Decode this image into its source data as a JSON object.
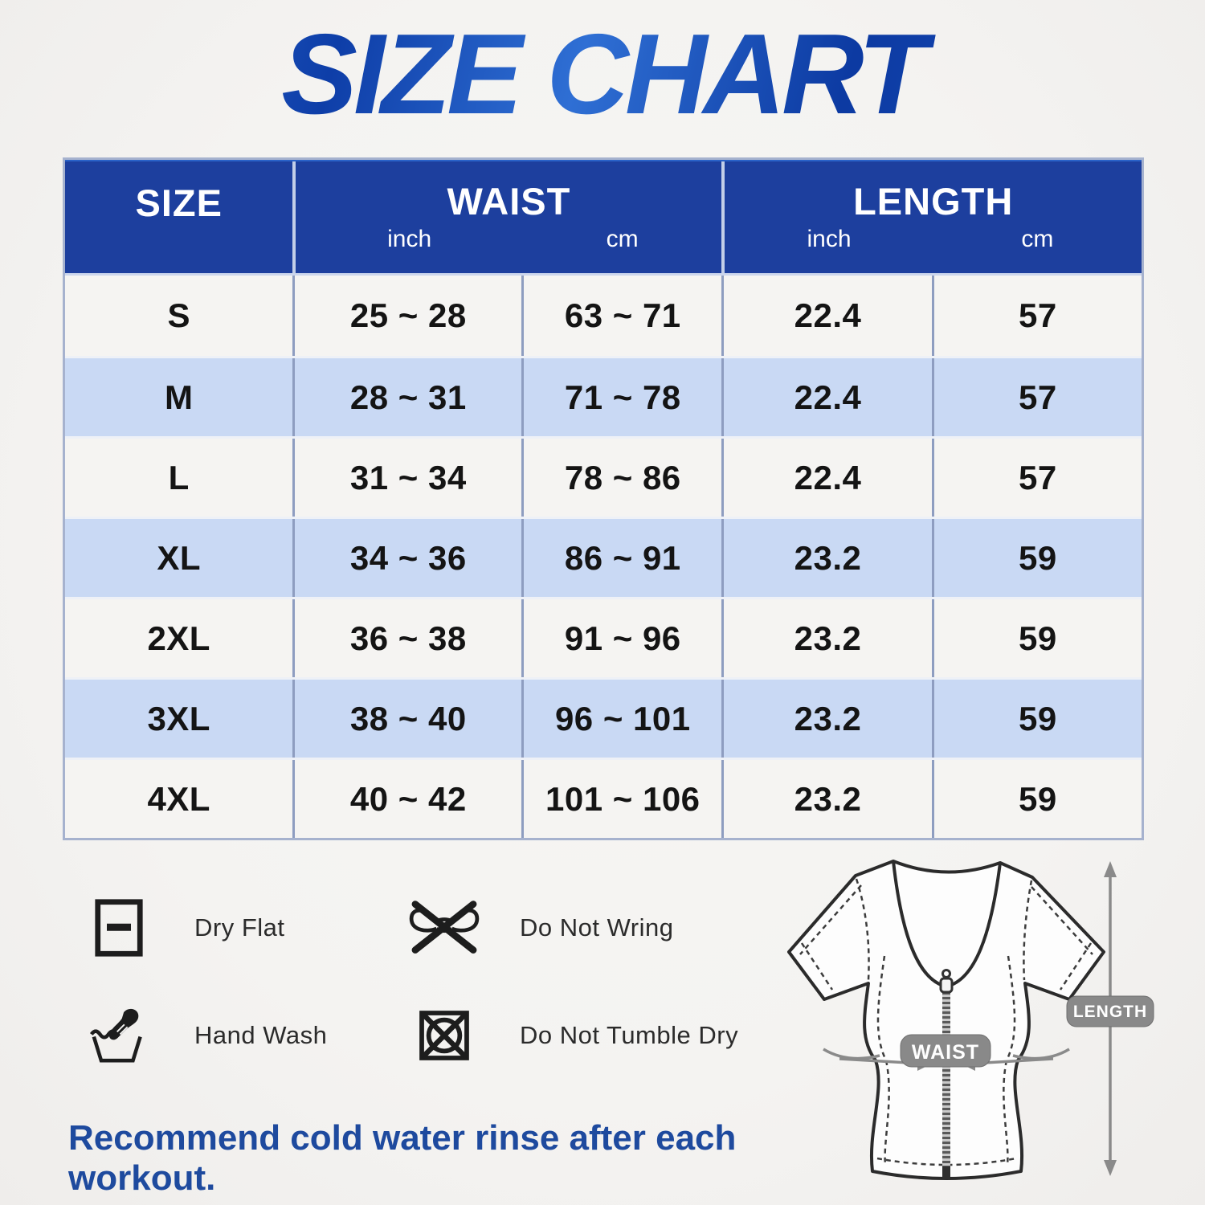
{
  "title": "SIZE CHART",
  "table": {
    "headers": {
      "size": "SIZE",
      "waist": "WAIST",
      "length": "LENGTH",
      "unit_inch": "inch",
      "unit_cm": "cm"
    },
    "rows": [
      {
        "size": "S",
        "waist_in": "25 ~ 28",
        "waist_cm": "63 ~ 71",
        "length_in": "22.4",
        "length_cm": "57"
      },
      {
        "size": "M",
        "waist_in": "28 ~ 31",
        "waist_cm": "71 ~ 78",
        "length_in": "22.4",
        "length_cm": "57"
      },
      {
        "size": "L",
        "waist_in": "31 ~ 34",
        "waist_cm": "78 ~ 86",
        "length_in": "22.4",
        "length_cm": "57"
      },
      {
        "size": "XL",
        "waist_in": "34 ~ 36",
        "waist_cm": "86 ~ 91",
        "length_in": "23.2",
        "length_cm": "59"
      },
      {
        "size": "2XL",
        "waist_in": "36 ~ 38",
        "waist_cm": "91 ~ 96",
        "length_in": "23.2",
        "length_cm": "59"
      },
      {
        "size": "3XL",
        "waist_in": "38 ~ 40",
        "waist_cm": "96 ~ 101",
        "length_in": "23.2",
        "length_cm": "59"
      },
      {
        "size": "4XL",
        "waist_in": "40 ~ 42",
        "waist_cm": "101 ~ 106",
        "length_in": "23.2",
        "length_cm": "59"
      }
    ]
  },
  "care": [
    {
      "icon": "dry-flat-icon",
      "label": "Dry Flat"
    },
    {
      "icon": "do-not-wring-icon",
      "label": "Do Not Wring"
    },
    {
      "icon": "hand-wash-icon",
      "label": "Hand Wash"
    },
    {
      "icon": "do-not-tumble-dry-icon",
      "label": "Do Not Tumble Dry"
    }
  ],
  "diagram": {
    "waist_label": "WAIST",
    "length_label": "LENGTH"
  },
  "footer_note": "Recommend cold water rinse after each workout.",
  "colors": {
    "header_blue": "#1d3f9e",
    "row_light": "#f5f4f2",
    "row_blue": "#c9d9f4",
    "divider": "#8e9dc0",
    "outer_border": "#a6b2ce",
    "title_blue_dark": "#0c3aa2",
    "title_blue_light": "#3274db",
    "footer_text": "#1e4a9e",
    "diagram_gray": "#8a8a8a",
    "icon_black": "#1d1d1d"
  },
  "chart_data": {
    "type": "table",
    "title": "SIZE CHART",
    "columns": [
      "SIZE",
      "WAIST inch",
      "WAIST cm",
      "LENGTH inch",
      "LENGTH cm"
    ],
    "rows": [
      [
        "S",
        "25 ~ 28",
        "63 ~ 71",
        "22.4",
        "57"
      ],
      [
        "M",
        "28 ~ 31",
        "71 ~ 78",
        "22.4",
        "57"
      ],
      [
        "L",
        "31 ~ 34",
        "78 ~ 86",
        "22.4",
        "57"
      ],
      [
        "XL",
        "34 ~ 36",
        "86 ~ 91",
        "23.2",
        "59"
      ],
      [
        "2XL",
        "36 ~ 38",
        "91 ~ 96",
        "23.2",
        "59"
      ],
      [
        "3XL",
        "38 ~ 40",
        "96 ~ 101",
        "23.2",
        "59"
      ],
      [
        "4XL",
        "40 ~ 42",
        "101 ~ 106",
        "23.2",
        "59"
      ]
    ]
  }
}
